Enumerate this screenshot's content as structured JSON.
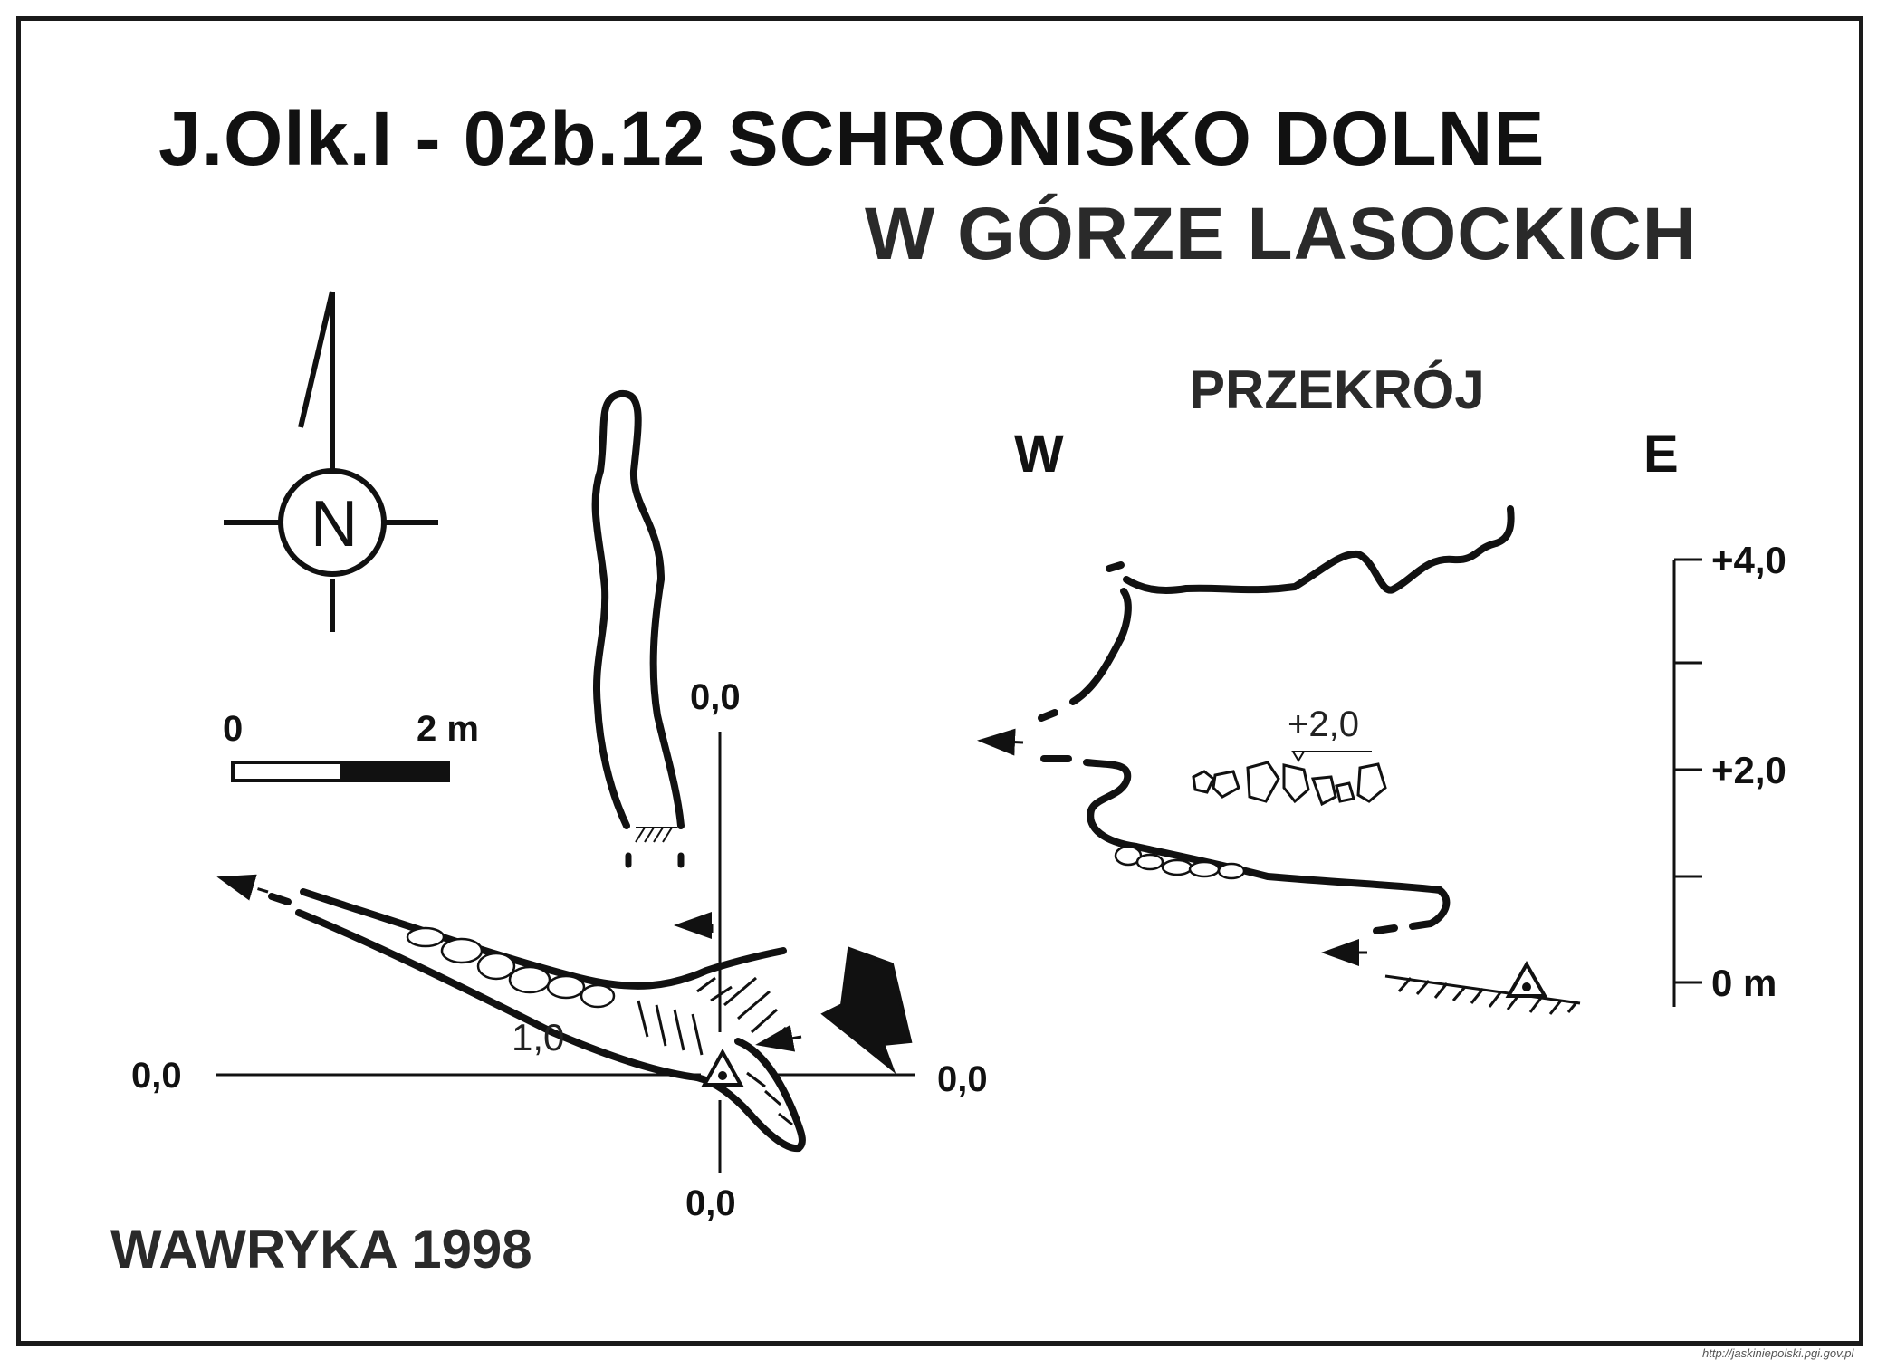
{
  "title": {
    "line1": "J.Olk.I - 02b.12  SCHRONISKO DOLNE",
    "line2": "W GÓRZE LASOCKICH"
  },
  "compass": {
    "letter": "N",
    "icon": "north-arrow-icon"
  },
  "scale_bar": {
    "start_label": "0",
    "end_label": "2 m"
  },
  "plan": {
    "datum_labels": {
      "top": "0,0",
      "left": "0,0",
      "right": "0,0",
      "bottom": "0,0"
    },
    "depth_label": "1,0"
  },
  "section": {
    "heading": "PRZEKRÓJ",
    "west_label": "W",
    "east_label": "E",
    "height_label": "+2,0",
    "vertical_scale": [
      "+4,0",
      "+2,0",
      "0 m"
    ]
  },
  "author": "WAWRYKA 1998",
  "credit": "http://jaskiniepolski.pgi.gov.pl",
  "colors": {
    "ink": "#111111",
    "paper": "#ffffff"
  }
}
